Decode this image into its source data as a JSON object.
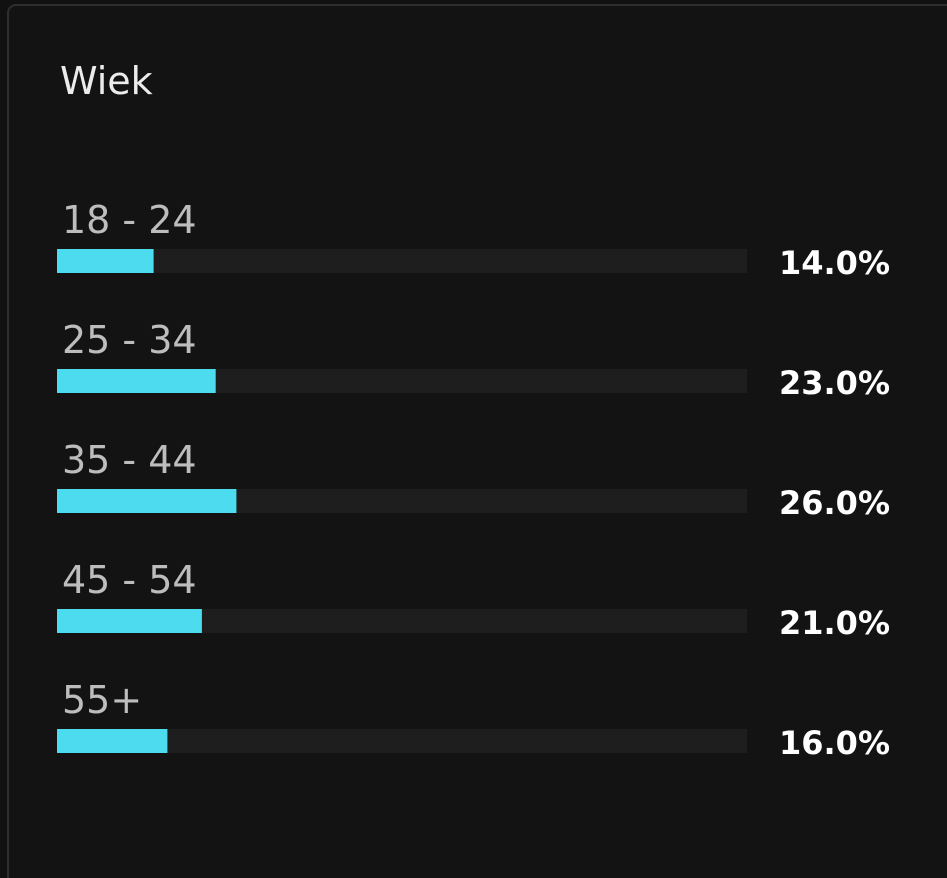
{
  "chart_data": {
    "type": "bar",
    "orientation": "horizontal",
    "title": "Wiek",
    "categories": [
      "18 - 24",
      "25 - 34",
      "35 - 44",
      "45 - 54",
      "55+"
    ],
    "values": [
      14,
      23,
      26,
      21,
      16
    ],
    "value_labels": [
      "14.0%",
      "23.0%",
      "26.0%",
      "21.0%",
      "16.0%"
    ],
    "color": "#4ddcef",
    "xlim": [
      0,
      100
    ]
  }
}
